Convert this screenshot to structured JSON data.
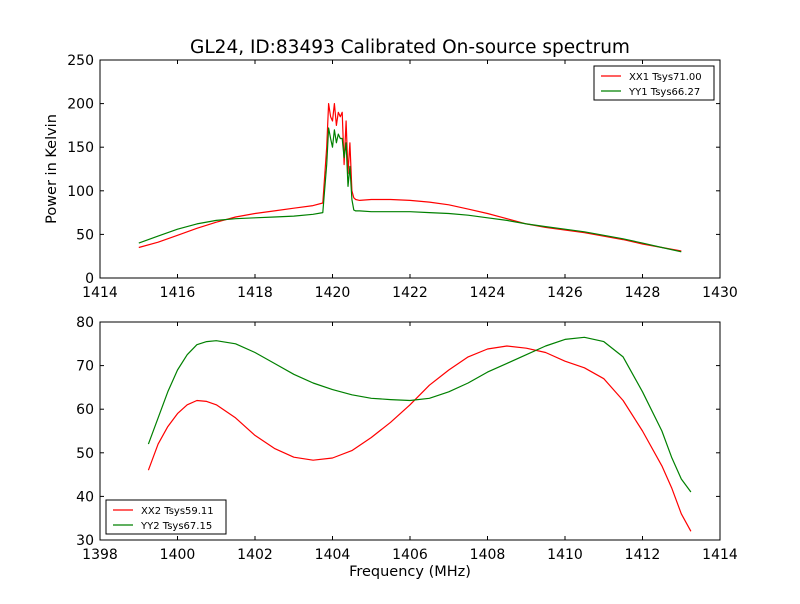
{
  "title": "GL24, ID:83493 Calibrated On-source spectrum",
  "chart_data": [
    {
      "type": "line",
      "id": "top",
      "ylabel": "Power in Kelvin",
      "xlabel": "",
      "xlim": [
        1414,
        1430
      ],
      "ylim": [
        0,
        250
      ],
      "xticks": [
        1414,
        1416,
        1418,
        1420,
        1422,
        1424,
        1426,
        1428,
        1430
      ],
      "yticks": [
        0,
        50,
        100,
        150,
        200,
        250
      ],
      "legend_position": "top-right",
      "series": [
        {
          "name": "XX1 Tsys71.00",
          "color": "#ff0000",
          "x": [
            1415.0,
            1415.5,
            1416.0,
            1416.5,
            1417.0,
            1417.5,
            1418.0,
            1418.5,
            1419.0,
            1419.5,
            1419.75,
            1419.85,
            1419.9,
            1419.95,
            1420.0,
            1420.05,
            1420.1,
            1420.15,
            1420.2,
            1420.25,
            1420.3,
            1420.35,
            1420.4,
            1420.45,
            1420.5,
            1420.55,
            1420.6,
            1420.7,
            1421.0,
            1421.5,
            1422.0,
            1422.5,
            1423.0,
            1423.5,
            1424.0,
            1424.5,
            1425.0,
            1425.5,
            1426.0,
            1426.5,
            1427.0,
            1427.5,
            1428.0,
            1428.5,
            1429.0
          ],
          "y": [
            35,
            41,
            49,
            57,
            64,
            70,
            74,
            77,
            80,
            83,
            86,
            150,
            200,
            185,
            180,
            200,
            175,
            190,
            185,
            190,
            130,
            180,
            120,
            155,
            100,
            92,
            90,
            89,
            90,
            90,
            89,
            87,
            84,
            79,
            74,
            68,
            62,
            58,
            55,
            52,
            48,
            44,
            39,
            35,
            31
          ]
        },
        {
          "name": "YY1 Tsys66.27",
          "color": "#008000",
          "x": [
            1415.0,
            1415.5,
            1416.0,
            1416.5,
            1417.0,
            1417.5,
            1418.0,
            1418.5,
            1419.0,
            1419.5,
            1419.75,
            1419.85,
            1419.9,
            1419.95,
            1420.0,
            1420.05,
            1420.1,
            1420.15,
            1420.2,
            1420.25,
            1420.3,
            1420.35,
            1420.4,
            1420.45,
            1420.5,
            1420.55,
            1420.6,
            1420.7,
            1421.0,
            1421.5,
            1422.0,
            1422.5,
            1423.0,
            1423.5,
            1424.0,
            1424.5,
            1425.0,
            1425.5,
            1426.0,
            1426.5,
            1427.0,
            1427.5,
            1428.0,
            1428.5,
            1429.0
          ],
          "y": [
            40,
            48,
            56,
            62,
            66,
            68,
            69,
            70,
            71,
            73,
            75,
            130,
            172,
            160,
            150,
            170,
            155,
            165,
            160,
            160,
            138,
            155,
            105,
            128,
            90,
            78,
            77,
            77,
            76,
            76,
            76,
            75,
            74,
            72,
            69,
            66,
            62,
            59,
            56,
            53,
            49,
            45,
            40,
            35,
            30
          ]
        }
      ]
    },
    {
      "type": "line",
      "id": "bottom",
      "ylabel": "",
      "xlabel": "Frequency (MHz)",
      "xlim": [
        1398,
        1414
      ],
      "ylim": [
        30,
        80
      ],
      "xticks": [
        1398,
        1400,
        1402,
        1404,
        1406,
        1408,
        1410,
        1412,
        1414
      ],
      "yticks": [
        30,
        40,
        50,
        60,
        70,
        80
      ],
      "legend_position": "bottom-left",
      "series": [
        {
          "name": "XX2 Tsys59.11",
          "color": "#ff0000",
          "x": [
            1399.25,
            1399.5,
            1399.75,
            1400.0,
            1400.25,
            1400.5,
            1400.75,
            1401.0,
            1401.5,
            1402.0,
            1402.5,
            1403.0,
            1403.5,
            1404.0,
            1404.5,
            1405.0,
            1405.5,
            1406.0,
            1406.5,
            1407.0,
            1407.5,
            1408.0,
            1408.5,
            1409.0,
            1409.5,
            1410.0,
            1410.5,
            1411.0,
            1411.5,
            1412.0,
            1412.5,
            1412.75,
            1413.0,
            1413.25
          ],
          "y": [
            46,
            52,
            56,
            59,
            61,
            62,
            61.8,
            61,
            58,
            54,
            51,
            49,
            48.3,
            48.8,
            50.5,
            53.5,
            57,
            61,
            65.5,
            69,
            72,
            73.8,
            74.5,
            74,
            73,
            71,
            69.5,
            67,
            62,
            55,
            47,
            42,
            36,
            32
          ]
        },
        {
          "name": "YY2 Tsys67.15",
          "color": "#008000",
          "x": [
            1399.25,
            1399.5,
            1399.75,
            1400.0,
            1400.25,
            1400.5,
            1400.75,
            1401.0,
            1401.5,
            1402.0,
            1402.5,
            1403.0,
            1403.5,
            1404.0,
            1404.5,
            1405.0,
            1405.5,
            1406.0,
            1406.5,
            1407.0,
            1407.5,
            1408.0,
            1408.5,
            1409.0,
            1409.5,
            1410.0,
            1410.5,
            1411.0,
            1411.5,
            1412.0,
            1412.5,
            1412.75,
            1413.0,
            1413.25
          ],
          "y": [
            52,
            58,
            64,
            69,
            72.5,
            74.8,
            75.5,
            75.7,
            75,
            73,
            70.5,
            68,
            66,
            64.5,
            63.3,
            62.5,
            62.2,
            62,
            62.5,
            64,
            66,
            68.5,
            70.5,
            72.5,
            74.5,
            76,
            76.5,
            75.5,
            72,
            64,
            55,
            49,
            44,
            41
          ]
        }
      ]
    }
  ]
}
